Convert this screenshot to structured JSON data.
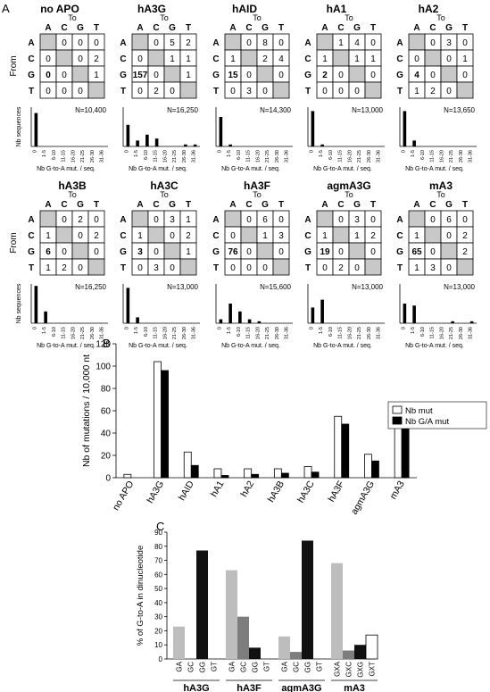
{
  "panel_labels": {
    "a": "A",
    "b": "B",
    "c": "C"
  },
  "chart_data": [
    {
      "type": "table",
      "panel": "A",
      "axis_to": "To",
      "axis_from": "From",
      "bases": [
        "A",
        "C",
        "G",
        "T"
      ],
      "hist_ylabel": "Nb sequences",
      "hist_xlabel": "Nb G-to-A mut. / seq.",
      "hist_categories": [
        "0",
        "1-5",
        "6-10",
        "11-15",
        "16-20",
        "21-25",
        "26-30",
        "31-36"
      ],
      "enzymes": [
        {
          "name": "no APO",
          "matrix": [
            [
              "",
              "0",
              "0",
              "0"
            ],
            [
              "0",
              "",
              "0",
              "2"
            ],
            [
              "0",
              "0",
              "",
              "1"
            ],
            [
              "0",
              "0",
              "0",
              ""
            ]
          ],
          "bold": [
            [
              2,
              0
            ]
          ],
          "n": "N=10,400",
          "hist": [
            17,
            0,
            0,
            0,
            0,
            0,
            0,
            0
          ]
        },
        {
          "name": "hA3G",
          "matrix": [
            [
              "",
              "0",
              "5",
              "2"
            ],
            [
              "0",
              "",
              "1",
              "1"
            ],
            [
              "157",
              "0",
              "",
              "1"
            ],
            [
              "0",
              "2",
              "0",
              ""
            ]
          ],
          "bold": [
            [
              2,
              0
            ]
          ],
          "n": "N=16,250",
          "hist": [
            11,
            3,
            6,
            4,
            0,
            0,
            1,
            1
          ]
        },
        {
          "name": "hAID",
          "matrix": [
            [
              "",
              "0",
              "8",
              "0"
            ],
            [
              "1",
              "",
              "2",
              "4"
            ],
            [
              "15",
              "0",
              "",
              "0"
            ],
            [
              "0",
              "3",
              "0",
              ""
            ]
          ],
          "bold": [
            [
              2,
              0
            ]
          ],
          "n": "N=14,300",
          "hist": [
            15,
            1,
            0,
            0,
            0,
            0,
            0,
            0
          ]
        },
        {
          "name": "hA1",
          "matrix": [
            [
              "",
              "1",
              "4",
              "0"
            ],
            [
              "1",
              "",
              "1",
              "1"
            ],
            [
              "2",
              "0",
              "",
              "0"
            ],
            [
              "0",
              "0",
              "0",
              ""
            ]
          ],
          "bold": [
            [
              2,
              0
            ]
          ],
          "n": "N=13,000",
          "hist": [
            18,
            1,
            0,
            0,
            0,
            0,
            0,
            0
          ]
        },
        {
          "name": "hA2",
          "matrix": [
            [
              "",
              "0",
              "3",
              "0"
            ],
            [
              "0",
              "",
              "0",
              "1"
            ],
            [
              "4",
              "0",
              "",
              "0"
            ],
            [
              "1",
              "2",
              "0",
              ""
            ]
          ],
          "bold": [
            [
              2,
              0
            ]
          ],
          "n": "N=13,650",
          "hist": [
            18,
            3,
            0,
            0,
            0,
            0,
            0,
            0
          ]
        },
        {
          "name": "hA3B",
          "matrix": [
            [
              "",
              "0",
              "2",
              "0"
            ],
            [
              "1",
              "",
              "0",
              "2"
            ],
            [
              "6",
              "0",
              "",
              "0"
            ],
            [
              "1",
              "2",
              "0",
              ""
            ]
          ],
          "bold": [
            [
              2,
              0
            ]
          ],
          "n": "N=16,250",
          "hist": [
            19,
            6,
            0,
            0,
            0,
            0,
            0,
            0
          ]
        },
        {
          "name": "hA3C",
          "matrix": [
            [
              "",
              "0",
              "3",
              "1"
            ],
            [
              "1",
              "",
              "0",
              "2"
            ],
            [
              "3",
              "0",
              "",
              "1"
            ],
            [
              "0",
              "3",
              "0",
              ""
            ]
          ],
          "bold": [
            [
              2,
              0
            ]
          ],
          "n": "N=13,000",
          "hist": [
            18,
            3,
            0,
            0,
            0,
            0,
            0,
            0
          ]
        },
        {
          "name": "hA3F",
          "matrix": [
            [
              "",
              "0",
              "6",
              "0"
            ],
            [
              "0",
              "",
              "1",
              "3"
            ],
            [
              "76",
              "0",
              "",
              "0"
            ],
            [
              "0",
              "0",
              "0",
              ""
            ]
          ],
          "bold": [
            [
              2,
              0
            ]
          ],
          "n": "N=15,600",
          "hist": [
            2,
            10,
            6,
            2,
            1,
            0,
            0,
            0
          ]
        },
        {
          "name": "agmA3G",
          "matrix": [
            [
              "",
              "0",
              "3",
              "0"
            ],
            [
              "1",
              "",
              "1",
              "2"
            ],
            [
              "19",
              "0",
              "",
              "0"
            ],
            [
              "0",
              "2",
              "0",
              ""
            ]
          ],
          "bold": [
            [
              2,
              0
            ]
          ],
          "n": "N=13,000",
          "hist": [
            8,
            12,
            0,
            0,
            0,
            0,
            0,
            0
          ]
        },
        {
          "name": "mA3",
          "matrix": [
            [
              "",
              "0",
              "6",
              "0"
            ],
            [
              "1",
              "",
              "0",
              "2"
            ],
            [
              "65",
              "0",
              "",
              "2"
            ],
            [
              "1",
              "3",
              "0",
              ""
            ]
          ],
          "bold": [
            [
              2,
              0
            ]
          ],
          "n": "N=13,000",
          "hist": [
            10,
            9,
            0,
            0,
            0,
            1,
            0,
            1
          ]
        }
      ]
    },
    {
      "type": "bar",
      "panel": "B",
      "categories": [
        "no APO",
        "hA3G",
        "hAID",
        "hA1",
        "hA2",
        "hA3B",
        "hA3C",
        "hA3F",
        "agmA3G",
        "mA3"
      ],
      "series": [
        {
          "name": "Nb mut",
          "values": [
            3,
            104,
            23,
            8,
            8,
            8,
            10,
            55,
            21,
            61
          ],
          "color": "#ffffff"
        },
        {
          "name": "Nb G/A mut",
          "values": [
            0,
            96,
            11,
            2,
            3,
            4,
            5,
            48,
            15,
            51
          ],
          "color": "#000000"
        }
      ],
      "ylabel": "Nb of mutations / 10,000 nt",
      "ylim": [
        0,
        120
      ],
      "yticks": [
        "0",
        "20",
        "40",
        "60",
        "80",
        "100",
        "120"
      ],
      "legend": "right"
    },
    {
      "type": "bar",
      "panel": "C",
      "ylabel": "% of G-to-A in dinucleotide",
      "ylim": [
        0,
        90
      ],
      "yticks": [
        "0",
        "10",
        "20",
        "30",
        "40",
        "50",
        "60",
        "70",
        "80",
        "90"
      ],
      "groups": [
        {
          "name": "hA3G",
          "categories": [
            "GA",
            "GC",
            "GG",
            "GT"
          ],
          "values": [
            23,
            0,
            77,
            0
          ],
          "colors": [
            "#bdbdbd",
            "#7d7d7d",
            "#111111",
            "#ffffff"
          ]
        },
        {
          "name": "hA3F",
          "categories": [
            "GA",
            "GC",
            "GG",
            "GT"
          ],
          "values": [
            63,
            30,
            8,
            0
          ],
          "colors": [
            "#bdbdbd",
            "#7d7d7d",
            "#111111",
            "#ffffff"
          ]
        },
        {
          "name": "agmA3G",
          "categories": [
            "GA",
            "GC",
            "GG",
            "GT"
          ],
          "values": [
            16,
            5,
            84,
            0
          ],
          "colors": [
            "#bdbdbd",
            "#7d7d7d",
            "#111111",
            "#ffffff"
          ]
        },
        {
          "name": "mA3",
          "categories": [
            "GXA",
            "GXC",
            "GXG",
            "GXT"
          ],
          "values": [
            68,
            6,
            10,
            17
          ],
          "colors": [
            "#bdbdbd",
            "#7d7d7d",
            "#111111",
            "#ffffff"
          ]
        }
      ]
    }
  ]
}
